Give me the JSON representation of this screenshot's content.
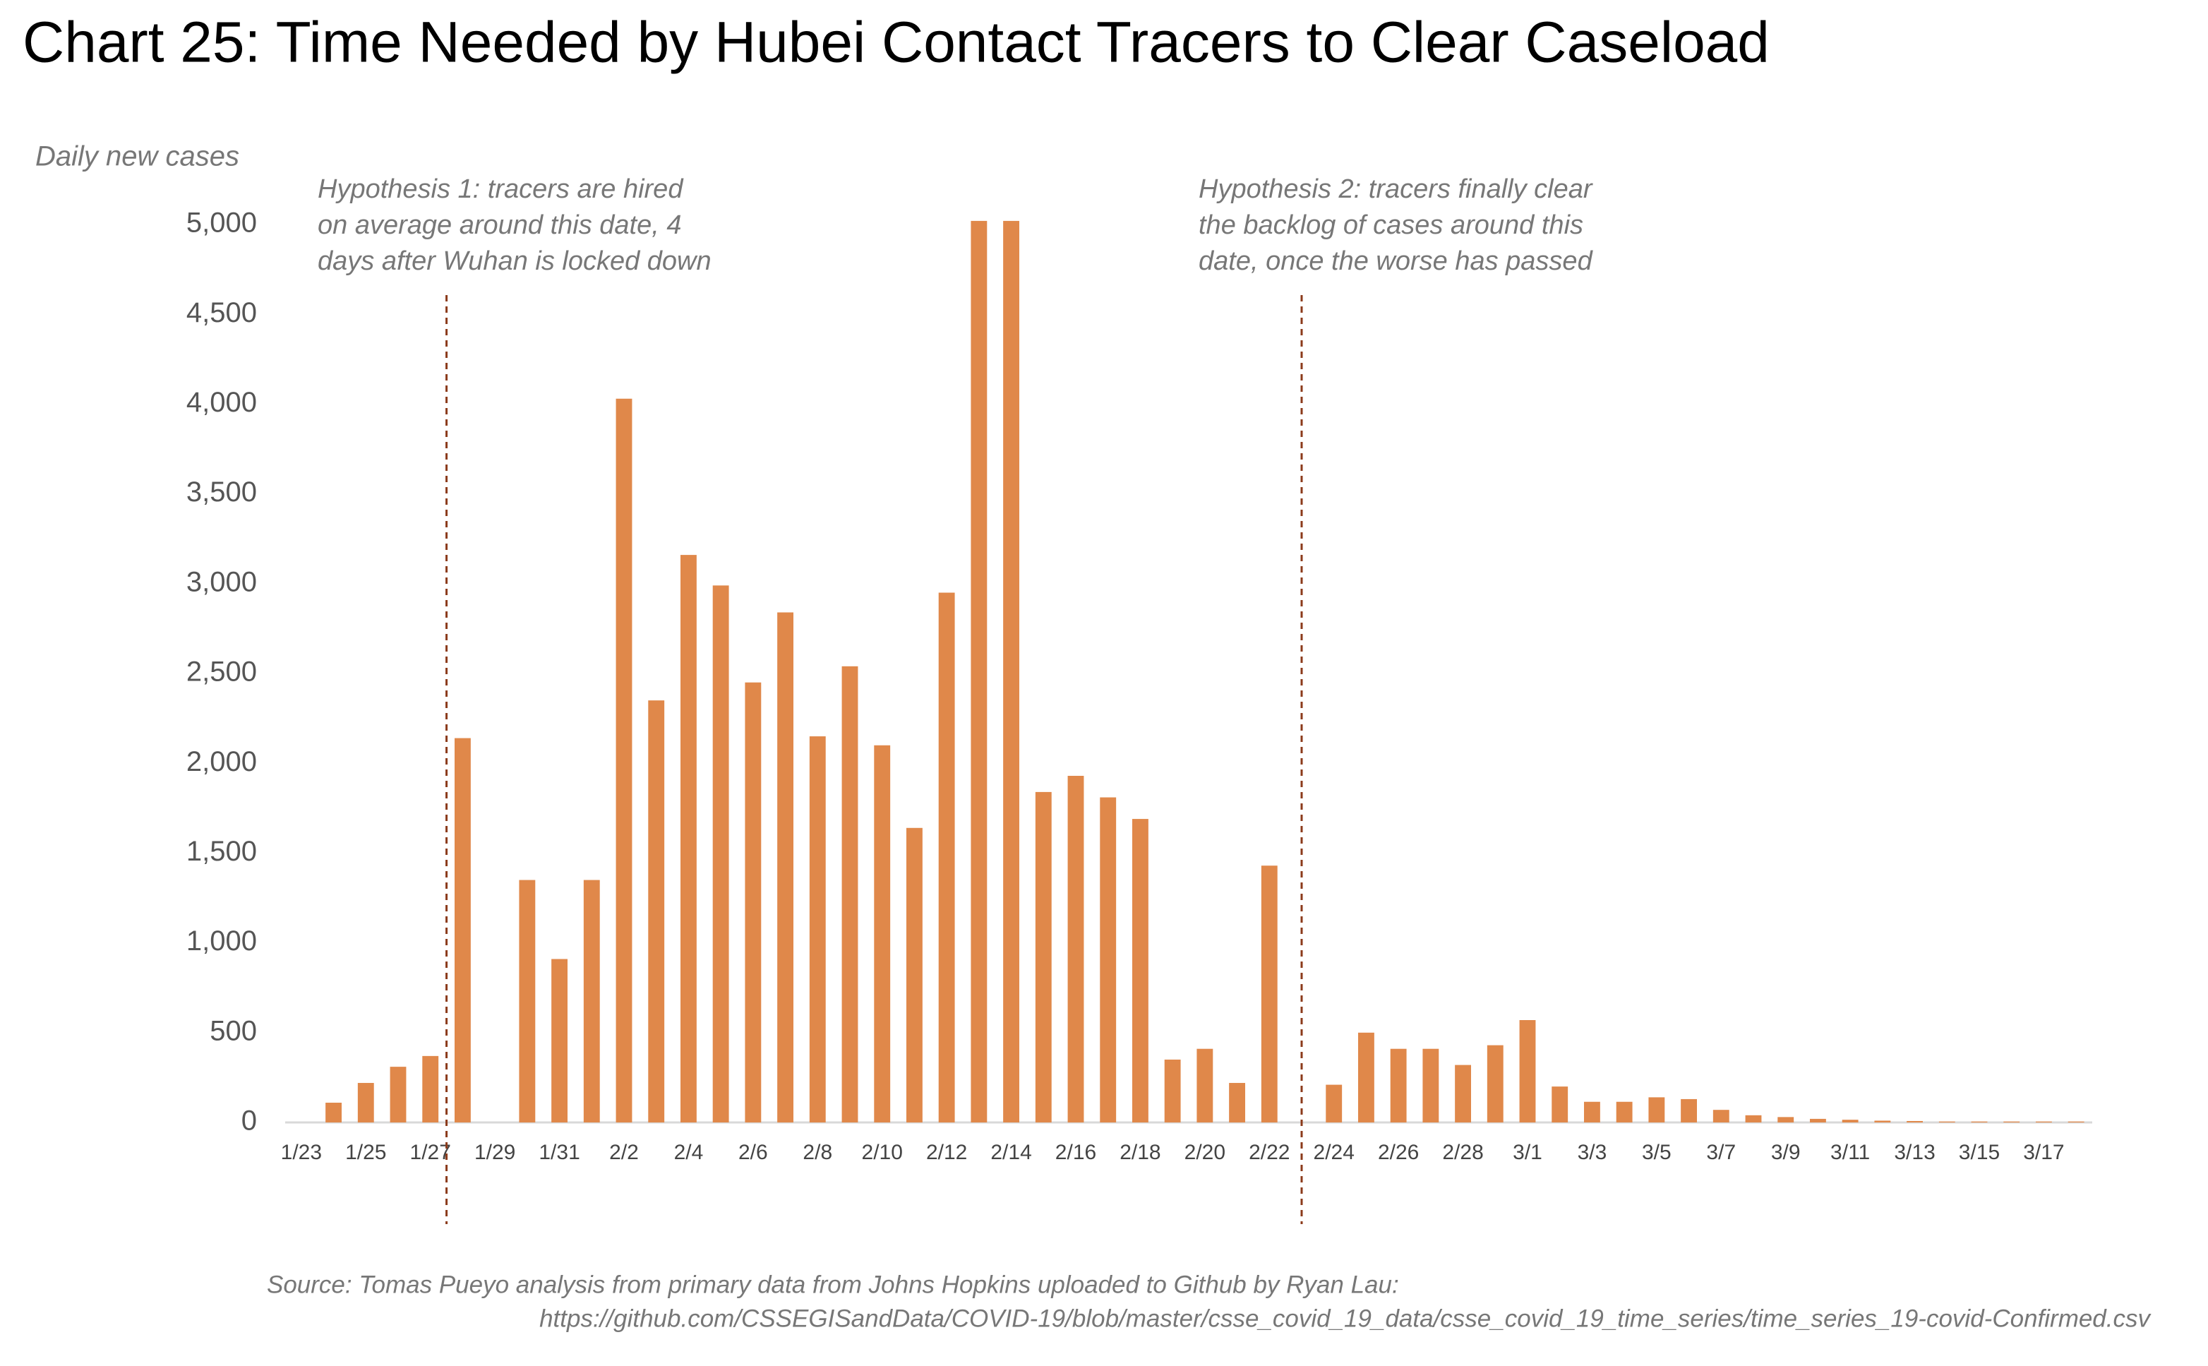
{
  "chart_data": {
    "type": "bar",
    "title": "Chart 25: Time Needed by Hubei Contact Tracers to Clear Caseload",
    "y_label": "Daily new cases",
    "categories": [
      "1/23",
      null,
      "1/25",
      null,
      "1/27",
      null,
      "1/29",
      null,
      "1/31",
      null,
      "2/2",
      null,
      "2/4",
      null,
      "2/6",
      null,
      "2/8",
      null,
      "2/10",
      null,
      "2/12",
      null,
      "2/14",
      null,
      "2/16",
      null,
      "2/18",
      null,
      "2/20",
      null,
      "2/22",
      null,
      "2/24",
      null,
      "2/26",
      null,
      "2/28",
      null,
      "3/1",
      null,
      "3/3",
      null,
      "3/5",
      null,
      "3/7",
      null,
      "3/9",
      null,
      "3/11",
      null,
      "3/13",
      null,
      "3/15",
      null,
      "3/17",
      null
    ],
    "values": [
      0,
      110,
      220,
      310,
      370,
      2140,
      0,
      1350,
      910,
      1350,
      4030,
      2350,
      3160,
      2990,
      2450,
      2840,
      2150,
      2540,
      2100,
      1640,
      2950,
      5020,
      5020,
      1840,
      1930,
      1810,
      1690,
      350,
      410,
      220,
      1430,
      0,
      210,
      500,
      410,
      410,
      320,
      430,
      570,
      200,
      115,
      115,
      140,
      130,
      70,
      40,
      30,
      20,
      15,
      10,
      8,
      5,
      5,
      5,
      5,
      5
    ],
    "color": "#e0884a",
    "ylim": [
      0,
      5000
    ],
    "yticks": [
      0,
      500,
      {
        "value": 1000,
        "label": "1,000"
      },
      {
        "value": 1500,
        "label": "1,500"
      },
      {
        "value": 2000,
        "label": "2,000"
      },
      {
        "value": 2500,
        "label": "2,500"
      },
      {
        "value": 3000,
        "label": "3,000"
      },
      {
        "value": 3500,
        "label": "3,500"
      },
      {
        "value": 4000,
        "label": "4,000"
      },
      {
        "value": 4500,
        "label": "4,500"
      },
      {
        "value": 5000,
        "label": "5,000"
      }
    ],
    "grid": false,
    "annotations": [
      {
        "lines": [
          "Hypothesis 1: tracers are hired",
          "on average around this date, 4",
          "days after Wuhan is locked down"
        ]
      },
      {
        "lines": [
          "Hypothesis 2: tracers finally clear",
          "the backlog of cases around this",
          "date, once the worse has passed"
        ]
      }
    ],
    "source": [
      "Source: Tomas Pueyo analysis from primary data from Johns Hopkins uploaded to Github by Ryan Lau:",
      "https://github.com/CSSEGISandData/COVID-19/blob/master/csse_covid_19_data/csse_covid_19_time_series/time_series_19-covid-Confirmed.csv"
    ]
  }
}
